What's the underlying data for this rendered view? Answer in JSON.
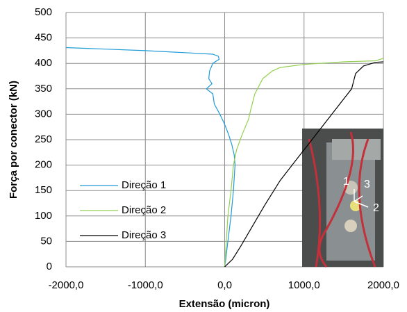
{
  "chart_data": {
    "type": "line",
    "x_label": "Extensão (micron)",
    "y_label": "Força por conector (kN)",
    "xlim": [
      -2000,
      2000
    ],
    "ylim": [
      0,
      500
    ],
    "xticks": [
      {
        "value": -2000,
        "label": "-2000,0"
      },
      {
        "value": -1000,
        "label": "-1000,0"
      },
      {
        "value": 0,
        "label": "0,0"
      },
      {
        "value": 1000,
        "label": "1000,0"
      },
      {
        "value": 2000,
        "label": "2000,0"
      }
    ],
    "yticks": [
      0,
      50,
      100,
      150,
      200,
      250,
      300,
      350,
      400,
      450,
      500
    ],
    "grid": true,
    "legend": "left",
    "series": [
      {
        "name": "Direção 1",
        "color": "#1f9bd7",
        "x": [
          -2000,
          -1500,
          -1000,
          -500,
          -150,
          -80,
          -70,
          -150,
          -190,
          -200,
          -160,
          -230,
          -150,
          -130,
          -60,
          0,
          50,
          90,
          120,
          130,
          110,
          80,
          40,
          10,
          0
        ],
        "values": [
          431,
          428,
          425,
          421,
          418,
          414,
          408,
          400,
          385,
          370,
          360,
          350,
          340,
          320,
          300,
          280,
          260,
          240,
          220,
          200,
          150,
          100,
          50,
          10,
          0
        ]
      },
      {
        "name": "Direção 2",
        "color": "#92d050",
        "x": [
          0,
          20,
          40,
          80,
          110,
          150,
          220,
          300,
          330,
          380,
          480,
          600,
          700,
          1000,
          1500,
          1900,
          2000
        ],
        "values": [
          0,
          50,
          100,
          150,
          200,
          230,
          260,
          290,
          310,
          340,
          370,
          385,
          392,
          398,
          403,
          405,
          410
        ]
      },
      {
        "name": "Direção 3",
        "color": "#000000",
        "x": [
          0,
          100,
          200,
          350,
          500,
          700,
          900,
          1100,
          1300,
          1500,
          1600,
          1650,
          1750,
          1900,
          2000
        ],
        "values": [
          0,
          15,
          40,
          80,
          120,
          170,
          210,
          250,
          290,
          330,
          350,
          380,
          395,
          402,
          403
        ]
      }
    ],
    "inset_labels": [
      "1",
      "2",
      "3"
    ]
  }
}
